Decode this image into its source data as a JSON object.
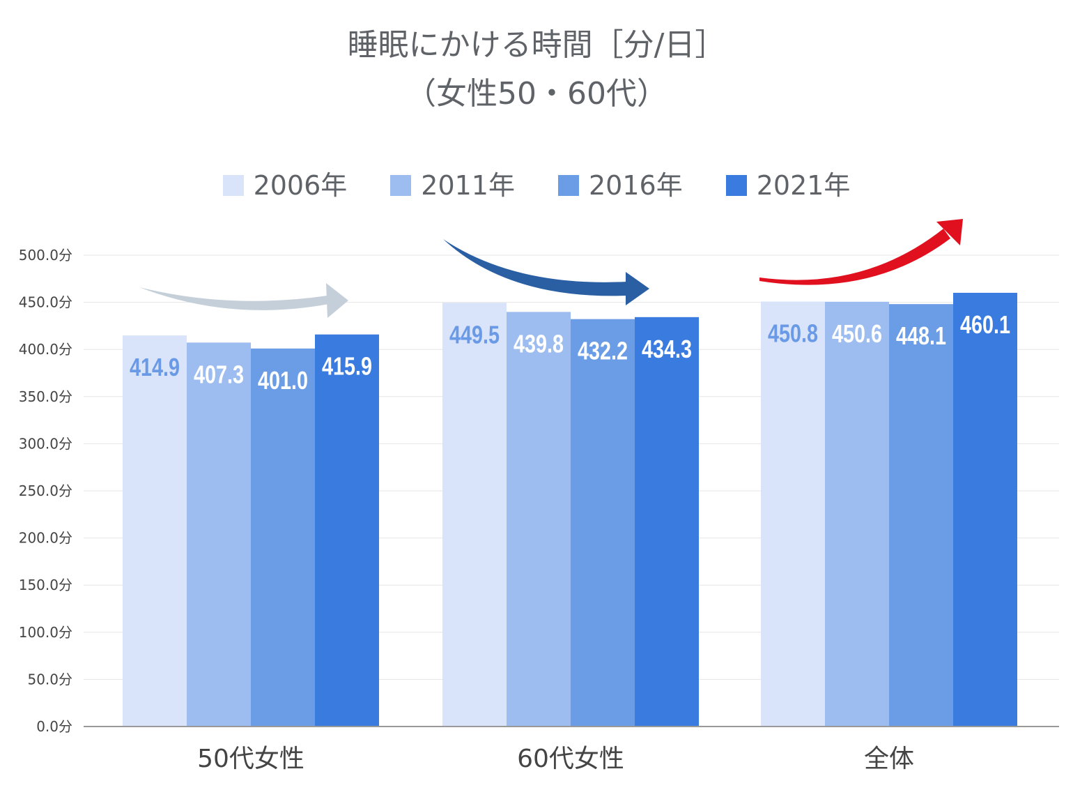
{
  "chart_data": {
    "type": "bar",
    "title": "睡眠にかける時間［分/日］",
    "subtitle": "（女性50・60代）",
    "categories": [
      "50代女性",
      "60代女性",
      "全体"
    ],
    "series": [
      {
        "name": "2006年",
        "color": "#d9e4fa",
        "label_color": "#6a9ae6",
        "values": [
          414.9,
          449.5,
          450.8
        ]
      },
      {
        "name": "2011年",
        "color": "#9dbcf0",
        "label_color": "#ffffff",
        "values": [
          407.3,
          439.8,
          450.6
        ]
      },
      {
        "name": "2016年",
        "color": "#6b9ce6",
        "label_color": "#ffffff",
        "values": [
          401.0,
          432.2,
          448.1
        ]
      },
      {
        "name": "2021年",
        "color": "#3a7be0",
        "label_color": "#ffffff",
        "values": [
          415.9,
          434.3,
          460.1
        ]
      }
    ],
    "data_labels": [
      [
        "414.9",
        "449.5",
        "450.8"
      ],
      [
        "407.3",
        "439.8",
        "450.6"
      ],
      [
        "401.0",
        "432.2",
        "448.1"
      ],
      [
        "415.9",
        "434.3",
        "460.1"
      ]
    ],
    "y_ticks": [
      {
        "value": 0,
        "label": "0.0分"
      },
      {
        "value": 50,
        "label": "50.0分"
      },
      {
        "value": 100,
        "label": "100.0分"
      },
      {
        "value": 150,
        "label": "150.0分"
      },
      {
        "value": 200,
        "label": "200.0分"
      },
      {
        "value": 250,
        "label": "250.0分"
      },
      {
        "value": 300,
        "label": "300.0分"
      },
      {
        "value": 350,
        "label": "350.0分"
      },
      {
        "value": 400,
        "label": "400.0分"
      },
      {
        "value": 450,
        "label": "450.0分"
      },
      {
        "value": 500,
        "label": "500.0分"
      }
    ],
    "ylim": [
      0,
      500
    ],
    "grid": true,
    "legend_position": "top",
    "trend_arrows": [
      {
        "category": "50代女性",
        "direction": "flat",
        "color": "#c4cfd9"
      },
      {
        "category": "60代女性",
        "direction": "down",
        "color": "#2b5fa3"
      },
      {
        "category": "全体",
        "direction": "up",
        "color": "#e0101f"
      }
    ]
  }
}
